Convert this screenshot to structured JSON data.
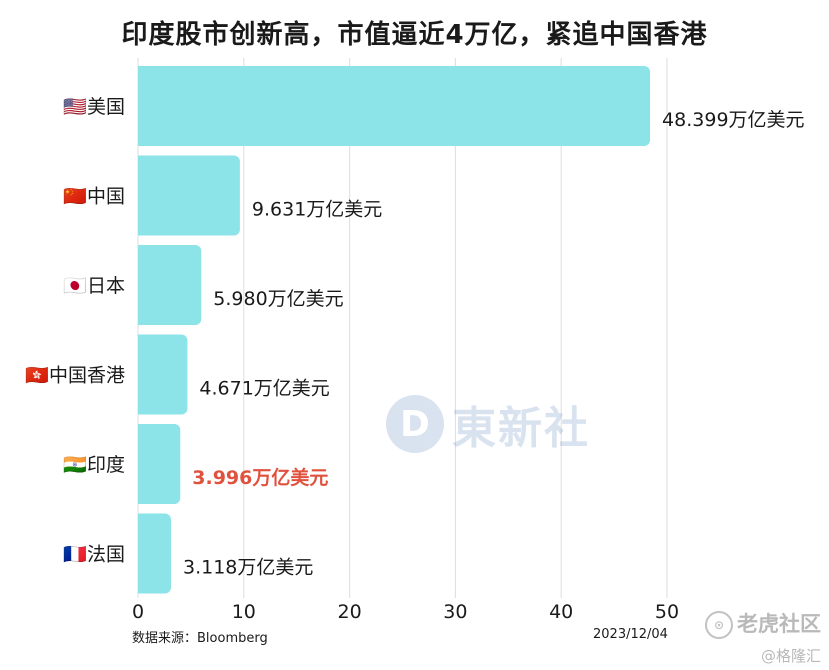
{
  "title": "印度股市创新高，市值逼近4万亿，紧追中国香港",
  "source": "数据来源：Bloomberg",
  "date": "2023/12/04",
  "watermark": {
    "logo_letter": "D",
    "text": "東新社"
  },
  "corner_mark": {
    "icon": "tiger-icon",
    "text": "老虎社区",
    "sub": "@格隆汇"
  },
  "colors": {
    "bar": "#8ce3e8",
    "highlight": "#e0513e",
    "grid": "#dedede",
    "text": "#1a1a1a"
  },
  "chart_data": {
    "type": "bar",
    "orientation": "horizontal",
    "title": "印度股市创新高，市值逼近4万亿，紧追中国香港",
    "categories": [
      "美国",
      "中国",
      "日本",
      "中国香港",
      "印度",
      "法国"
    ],
    "flags": [
      "🇺🇸",
      "🇨🇳",
      "🇯🇵",
      "🇭🇰",
      "🇮🇳",
      "🇫🇷"
    ],
    "values": [
      48.399,
      9.631,
      5.98,
      4.671,
      3.996,
      3.118
    ],
    "value_labels": [
      "48.399万亿美元",
      "9.631万亿美元",
      "5.980万亿美元",
      "4.671万亿美元",
      "3.996万亿美元",
      "3.118万亿美元"
    ],
    "highlight_index": 4,
    "unit": "万亿美元",
    "xlim": [
      0,
      50
    ],
    "xticks": [
      0,
      10,
      20,
      30,
      40,
      50
    ],
    "xlabel": "",
    "ylabel": "",
    "grid": true
  }
}
